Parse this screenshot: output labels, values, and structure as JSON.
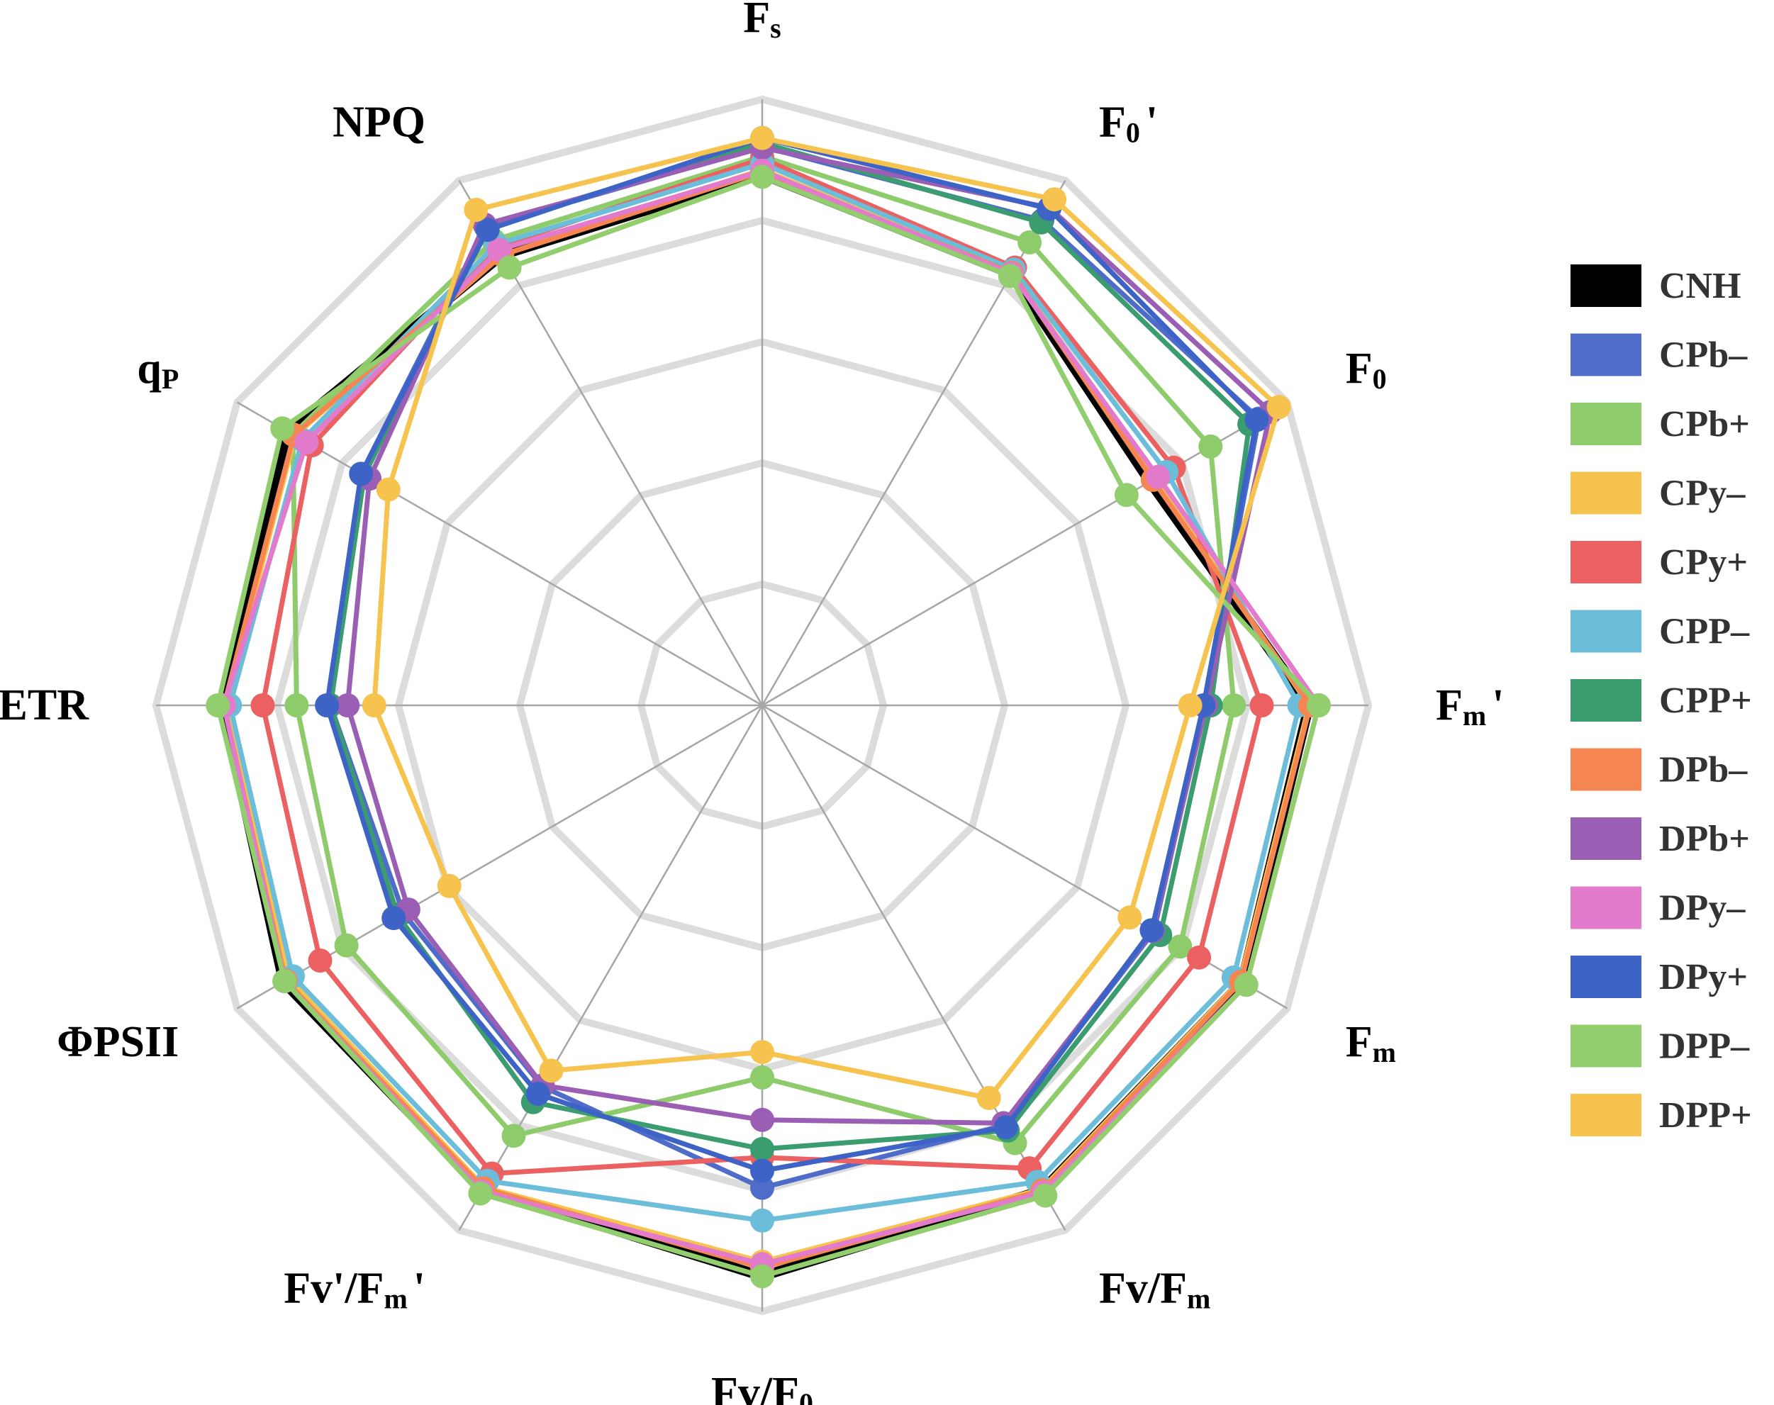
{
  "chart_data": {
    "type": "radar",
    "title": "",
    "axes": [
      {
        "label": "F",
        "sub": "s"
      },
      {
        "label": "F",
        "sub": "0",
        "suffix": "'"
      },
      {
        "label": "F",
        "sub": "0",
        "suffix": ""
      },
      {
        "label": "F",
        "sub": "m",
        "suffix": "'"
      },
      {
        "label": "F",
        "sub": "m",
        "suffix": ""
      },
      {
        "label": "Fv/F",
        "sub": "m",
        "suffix": ""
      },
      {
        "label": "Fv/F",
        "sub": "0",
        "suffix": ""
      },
      {
        "label": "Fv'/F",
        "sub": "m",
        "suffix": "'"
      },
      {
        "label": "ΦPSII",
        "sub": "",
        "suffix": ""
      },
      {
        "label": "ETR",
        "sub": "",
        "suffix": ""
      },
      {
        "label": "q",
        "sub": "P",
        "suffix": ""
      },
      {
        "label": "NPQ",
        "sub": "",
        "suffix": ""
      }
    ],
    "range": [
      0,
      5
    ],
    "rings": 5,
    "grid": true,
    "legend_position": "right",
    "series": [
      {
        "name": "CNH",
        "color": "#000000",
        "values": [
          4.38,
          4.11,
          3.69,
          4.51,
          4.57,
          4.62,
          4.71,
          4.61,
          4.56,
          4.45,
          4.52,
          4.29
        ],
        "markers": false
      },
      {
        "name": "CPb–",
        "color": "#4F6CC9",
        "values": [
          4.61,
          4.62,
          4.73,
          3.65,
          3.73,
          4.0,
          3.98,
          3.63,
          3.42,
          3.56,
          3.82,
          4.56
        ]
      },
      {
        "name": "CPb+",
        "color": "#8DCB6B",
        "values": [
          4.53,
          4.41,
          4.27,
          3.89,
          3.98,
          4.17,
          3.07,
          4.1,
          3.96,
          3.84,
          4.47,
          4.43
        ]
      },
      {
        "name": "CPy–",
        "color": "#F6C34F",
        "values": [
          4.42,
          4.13,
          3.74,
          4.51,
          4.55,
          4.61,
          4.59,
          4.59,
          4.51,
          4.42,
          4.45,
          4.29
        ]
      },
      {
        "name": "CPy+",
        "color": "#EB6060",
        "values": [
          4.51,
          4.17,
          3.92,
          4.12,
          4.16,
          4.41,
          3.73,
          4.46,
          4.21,
          4.12,
          4.29,
          4.37
        ]
      },
      {
        "name": "CPP–",
        "color": "#6BBDDA",
        "values": [
          4.47,
          4.15,
          3.85,
          4.43,
          4.49,
          4.54,
          4.25,
          4.53,
          4.47,
          4.39,
          4.38,
          4.39
        ]
      },
      {
        "name": "CPP+",
        "color": "#3B9C70",
        "values": [
          4.64,
          4.6,
          4.64,
          3.7,
          3.79,
          4.05,
          3.66,
          3.78,
          3.47,
          3.56,
          3.79,
          4.56
        ]
      },
      {
        "name": "DPb–",
        "color": "#F58652",
        "values": [
          4.4,
          4.12,
          3.72,
          4.52,
          4.56,
          4.62,
          4.64,
          4.6,
          4.54,
          4.44,
          4.46,
          4.29
        ]
      },
      {
        "name": "DPb+",
        "color": "#9A5FB4",
        "values": [
          4.6,
          4.74,
          4.84,
          3.66,
          3.72,
          3.98,
          3.42,
          3.62,
          3.37,
          3.42,
          3.74,
          4.58
        ]
      },
      {
        "name": "DPy–",
        "color": "#E27BCB",
        "values": [
          4.41,
          4.11,
          3.77,
          4.59,
          4.61,
          4.64,
          4.61,
          4.63,
          4.55,
          4.44,
          4.34,
          4.34
        ]
      },
      {
        "name": "DPy+",
        "color": "#3E63C6",
        "values": [
          4.68,
          4.73,
          4.71,
          3.64,
          3.71,
          4.02,
          3.84,
          3.7,
          3.51,
          3.59,
          3.82,
          4.53
        ]
      },
      {
        "name": "DPP–",
        "color": "#92CE6E",
        "values": [
          4.36,
          4.09,
          3.47,
          4.59,
          4.61,
          4.67,
          4.71,
          4.65,
          4.55,
          4.49,
          4.57,
          4.17
        ]
      },
      {
        "name": "DPP+",
        "color": "#F6C34F",
        "values": [
          4.68,
          4.82,
          4.92,
          3.53,
          3.5,
          3.74,
          2.86,
          3.48,
          2.98,
          3.2,
          3.56,
          4.72
        ]
      }
    ]
  }
}
